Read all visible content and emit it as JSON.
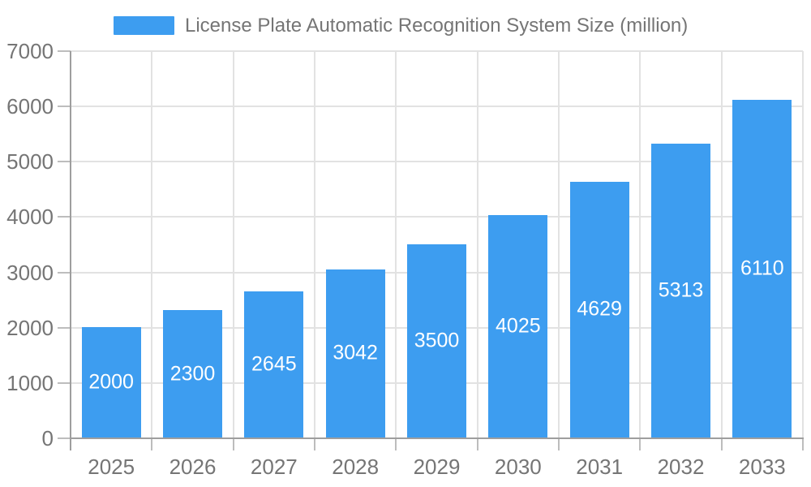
{
  "legend": {
    "label": "License Plate Automatic Recognition System Size (million)"
  },
  "chart_data": {
    "type": "bar",
    "title": "",
    "categories": [
      "2025",
      "2026",
      "2027",
      "2028",
      "2029",
      "2030",
      "2031",
      "2032",
      "2033"
    ],
    "series": [
      {
        "name": "License Plate Automatic Recognition System Size (million)",
        "values": [
          2000,
          2300,
          2645,
          3042,
          3500,
          4025,
          4629,
          5313,
          6110
        ]
      }
    ],
    "xlabel": "",
    "ylabel": "",
    "ylim": [
      0,
      7000
    ],
    "ytick_step": 1000,
    "ytick_labels": [
      "0",
      "1000",
      "2000",
      "3000",
      "4000",
      "5000",
      "6000",
      "7000"
    ],
    "grid": "on",
    "legend_position": "top",
    "bar_value_labels": "inside-center"
  },
  "colors": {
    "bar": "#3D9DF0",
    "bar_label": "#FFFFFF",
    "axis_text": "#757575",
    "legend_text": "#757575",
    "axis_line": "#9E9E9E",
    "gridline": "#E2E2E2",
    "tick": "#BDBDBD",
    "background": "#FFFFFF"
  }
}
